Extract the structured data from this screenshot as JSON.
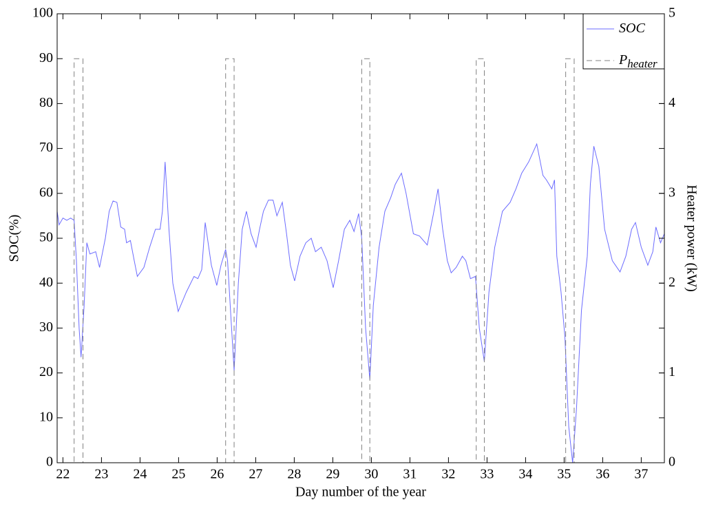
{
  "chart_data": {
    "type": "line",
    "xlabel": "Day number of the year",
    "ylabel": "SOC(%)",
    "y2label": "Heater power (kW)",
    "xlim": [
      21.85,
      37.6
    ],
    "xticks": [
      22,
      23,
      24,
      25,
      26,
      27,
      28,
      29,
      30,
      31,
      32,
      33,
      34,
      35,
      36,
      37
    ],
    "ylim": [
      0,
      100
    ],
    "yticks": [
      0,
      10,
      20,
      30,
      40,
      50,
      60,
      70,
      80,
      90,
      100
    ],
    "y2lim": [
      0,
      5
    ],
    "y2ticks": [
      0,
      1,
      2,
      3,
      4,
      5
    ],
    "legend": "northeast",
    "series": [
      {
        "name": "SOC",
        "color": "#6b6bff",
        "style": "solid",
        "x": [
          21.85,
          21.9,
          22.0,
          22.1,
          22.2,
          22.29,
          22.35,
          22.42,
          22.47,
          22.55,
          22.62,
          22.7,
          22.85,
          22.95,
          23.1,
          23.2,
          23.3,
          23.4,
          23.5,
          23.6,
          23.65,
          23.75,
          23.85,
          23.93,
          24.1,
          24.25,
          24.4,
          24.52,
          24.58,
          24.65,
          24.75,
          24.85,
          24.99,
          25.2,
          25.4,
          25.5,
          25.6,
          25.69,
          25.85,
          25.99,
          26.1,
          26.22,
          26.27,
          26.44,
          26.55,
          26.65,
          26.76,
          26.88,
          27.01,
          27.1,
          27.2,
          27.33,
          27.45,
          27.55,
          27.69,
          27.8,
          27.9,
          28.01,
          28.15,
          28.3,
          28.44,
          28.55,
          28.7,
          28.85,
          29.01,
          29.15,
          29.3,
          29.44,
          29.55,
          29.67,
          29.75,
          29.85,
          29.96,
          30.05,
          30.2,
          30.35,
          30.5,
          30.62,
          30.78,
          30.9,
          31.09,
          31.25,
          31.45,
          31.6,
          31.73,
          31.85,
          31.97,
          32.07,
          32.2,
          32.36,
          32.45,
          32.57,
          32.7,
          32.8,
          32.93,
          33.05,
          33.2,
          33.4,
          33.6,
          33.75,
          33.9,
          34.08,
          34.29,
          34.45,
          34.54,
          34.68,
          34.75,
          34.81,
          34.92,
          35.02,
          35.12,
          35.22,
          35.32,
          35.45,
          35.6,
          35.68,
          35.77,
          35.9,
          36.05,
          36.25,
          36.45,
          36.6,
          36.75,
          36.85,
          37.0,
          37.17,
          37.3,
          37.38,
          37.5,
          37.6
        ],
        "values": [
          56,
          53,
          54.5,
          54,
          54.5,
          54,
          45,
          30,
          23.5,
          35,
          49,
          46.5,
          47,
          43.5,
          50,
          56,
          58.3,
          58,
          52.5,
          52,
          49,
          49.5,
          45,
          41.5,
          43.5,
          48,
          52,
          52,
          56,
          67,
          52,
          40,
          33.7,
          38,
          41.5,
          41,
          43,
          53.5,
          44,
          39.5,
          44,
          47.5,
          45,
          20.5,
          40,
          52,
          56,
          51,
          48,
          52,
          56,
          58.5,
          58.5,
          55,
          58,
          51,
          44,
          40.5,
          46,
          49,
          50,
          47,
          48,
          45,
          39,
          45,
          52,
          54,
          51.5,
          55.5,
          50,
          30,
          18.5,
          35,
          48,
          56,
          59,
          62,
          64.5,
          60,
          51,
          50.5,
          48.5,
          55,
          61,
          52,
          45,
          42.3,
          43.5,
          46,
          45,
          41,
          41.5,
          30,
          22.5,
          38,
          48,
          56,
          58,
          61,
          64.5,
          67,
          71,
          64,
          63,
          61,
          63,
          46,
          38,
          28,
          8,
          0,
          12,
          34,
          46,
          62,
          70.5,
          66,
          52,
          45,
          42.5,
          46,
          52,
          53.5,
          48,
          44,
          47,
          52.5,
          49,
          51
        ]
      },
      {
        "name": "P",
        "subscript": "heater",
        "color": "#808080",
        "style": "dashed",
        "axis": "y2",
        "x": [
          21.85,
          22.29,
          22.29,
          22.52,
          22.52,
          26.22,
          26.22,
          26.44,
          26.44,
          29.75,
          29.75,
          29.96,
          29.96,
          32.72,
          32.72,
          32.93,
          32.93,
          35.04,
          35.04,
          35.26,
          35.26,
          37.6
        ],
        "values": [
          0,
          0,
          4.5,
          4.5,
          0,
          0,
          4.5,
          4.5,
          0,
          0,
          4.5,
          4.5,
          0,
          0,
          4.5,
          4.5,
          0,
          0,
          4.5,
          4.5,
          0,
          0
        ]
      }
    ]
  }
}
